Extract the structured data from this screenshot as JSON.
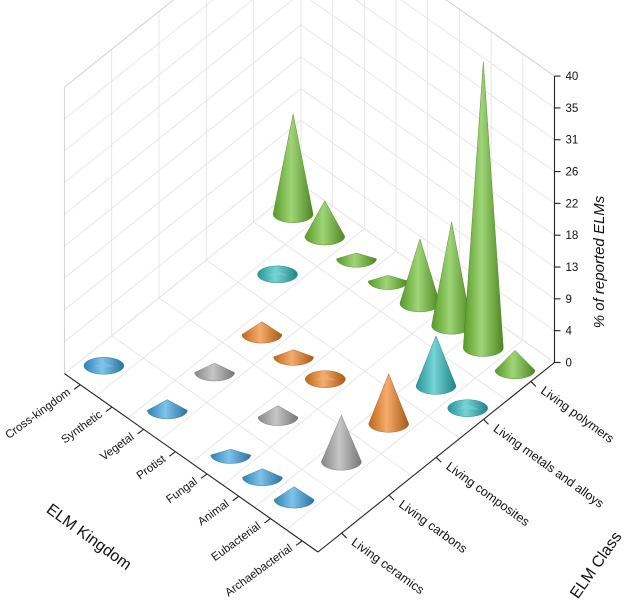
{
  "chart_data": {
    "type": "3d-cone",
    "title": "",
    "xlabel": "ELM Kingdom",
    "ylabel": "ELM Class",
    "zlabel": "% of reported ELMs",
    "kingdoms": [
      "Cross-kingdom",
      "Synthetic",
      "Vegetal",
      "Protist",
      "Fungal",
      "Animal",
      "Eubacterial",
      "Archaebacterial"
    ],
    "classes": [
      "Living ceramics",
      "Living carbons",
      "Living composites",
      "Living metals and alloys",
      "Living polymers"
    ],
    "zticks": [
      "0",
      "4",
      "9",
      "13",
      "18",
      "22",
      "26",
      "31",
      "35",
      "40"
    ],
    "zlim": [
      0,
      40
    ],
    "grid": true,
    "colors": {
      "Living ceramics": "#3aa3e0",
      "Living carbons": "#a8a8a8",
      "Living composites": "#f07f1e",
      "Living metals and alloys": "#2cbcbf",
      "Living polymers": "#6cbf2e"
    },
    "points": [
      {
        "kingdom": "Cross-kingdom",
        "class": "Living ceramics",
        "value": 0.4
      },
      {
        "kingdom": "Vegetal",
        "class": "Living ceramics",
        "value": 1.5
      },
      {
        "kingdom": "Fungal",
        "class": "Living ceramics",
        "value": 0.8
      },
      {
        "kingdom": "Animal",
        "class": "Living ceramics",
        "value": 1.2
      },
      {
        "kingdom": "Eubacterial",
        "class": "Living ceramics",
        "value": 1.8
      },
      {
        "kingdom": "Vegetal",
        "class": "Living carbons",
        "value": 1.3
      },
      {
        "kingdom": "Fungal",
        "class": "Living carbons",
        "value": 1.6
      },
      {
        "kingdom": "Eubacterial",
        "class": "Living carbons",
        "value": 6.5
      },
      {
        "kingdom": "Vegetal",
        "class": "Living composites",
        "value": 1.8
      },
      {
        "kingdom": "Protist",
        "class": "Living composites",
        "value": 1.0
      },
      {
        "kingdom": "Fungal",
        "class": "Living composites",
        "value": 0.6
      },
      {
        "kingdom": "Eubacterial",
        "class": "Living composites",
        "value": 7.0
      },
      {
        "kingdom": "Synthetic",
        "class": "Living metals and alloys",
        "value": 0.4
      },
      {
        "kingdom": "Eubacterial",
        "class": "Living metals and alloys",
        "value": 7.0
      },
      {
        "kingdom": "Archaebacterial",
        "class": "Living metals and alloys",
        "value": 0.6
      },
      {
        "kingdom": "Cross-kingdom",
        "class": "Living polymers",
        "value": 14.0
      },
      {
        "kingdom": "Synthetic",
        "class": "Living polymers",
        "value": 5.0
      },
      {
        "kingdom": "Vegetal",
        "class": "Living polymers",
        "value": 0.8
      },
      {
        "kingdom": "Protist",
        "class": "Living polymers",
        "value": 0.8
      },
      {
        "kingdom": "Fungal",
        "class": "Living polymers",
        "value": 9.0
      },
      {
        "kingdom": "Animal",
        "class": "Living polymers",
        "value": 14.5
      },
      {
        "kingdom": "Eubacterial",
        "class": "Living polymers",
        "value": 40.0
      },
      {
        "kingdom": "Archaebacterial",
        "class": "Living polymers",
        "value": 2.8
      }
    ]
  }
}
